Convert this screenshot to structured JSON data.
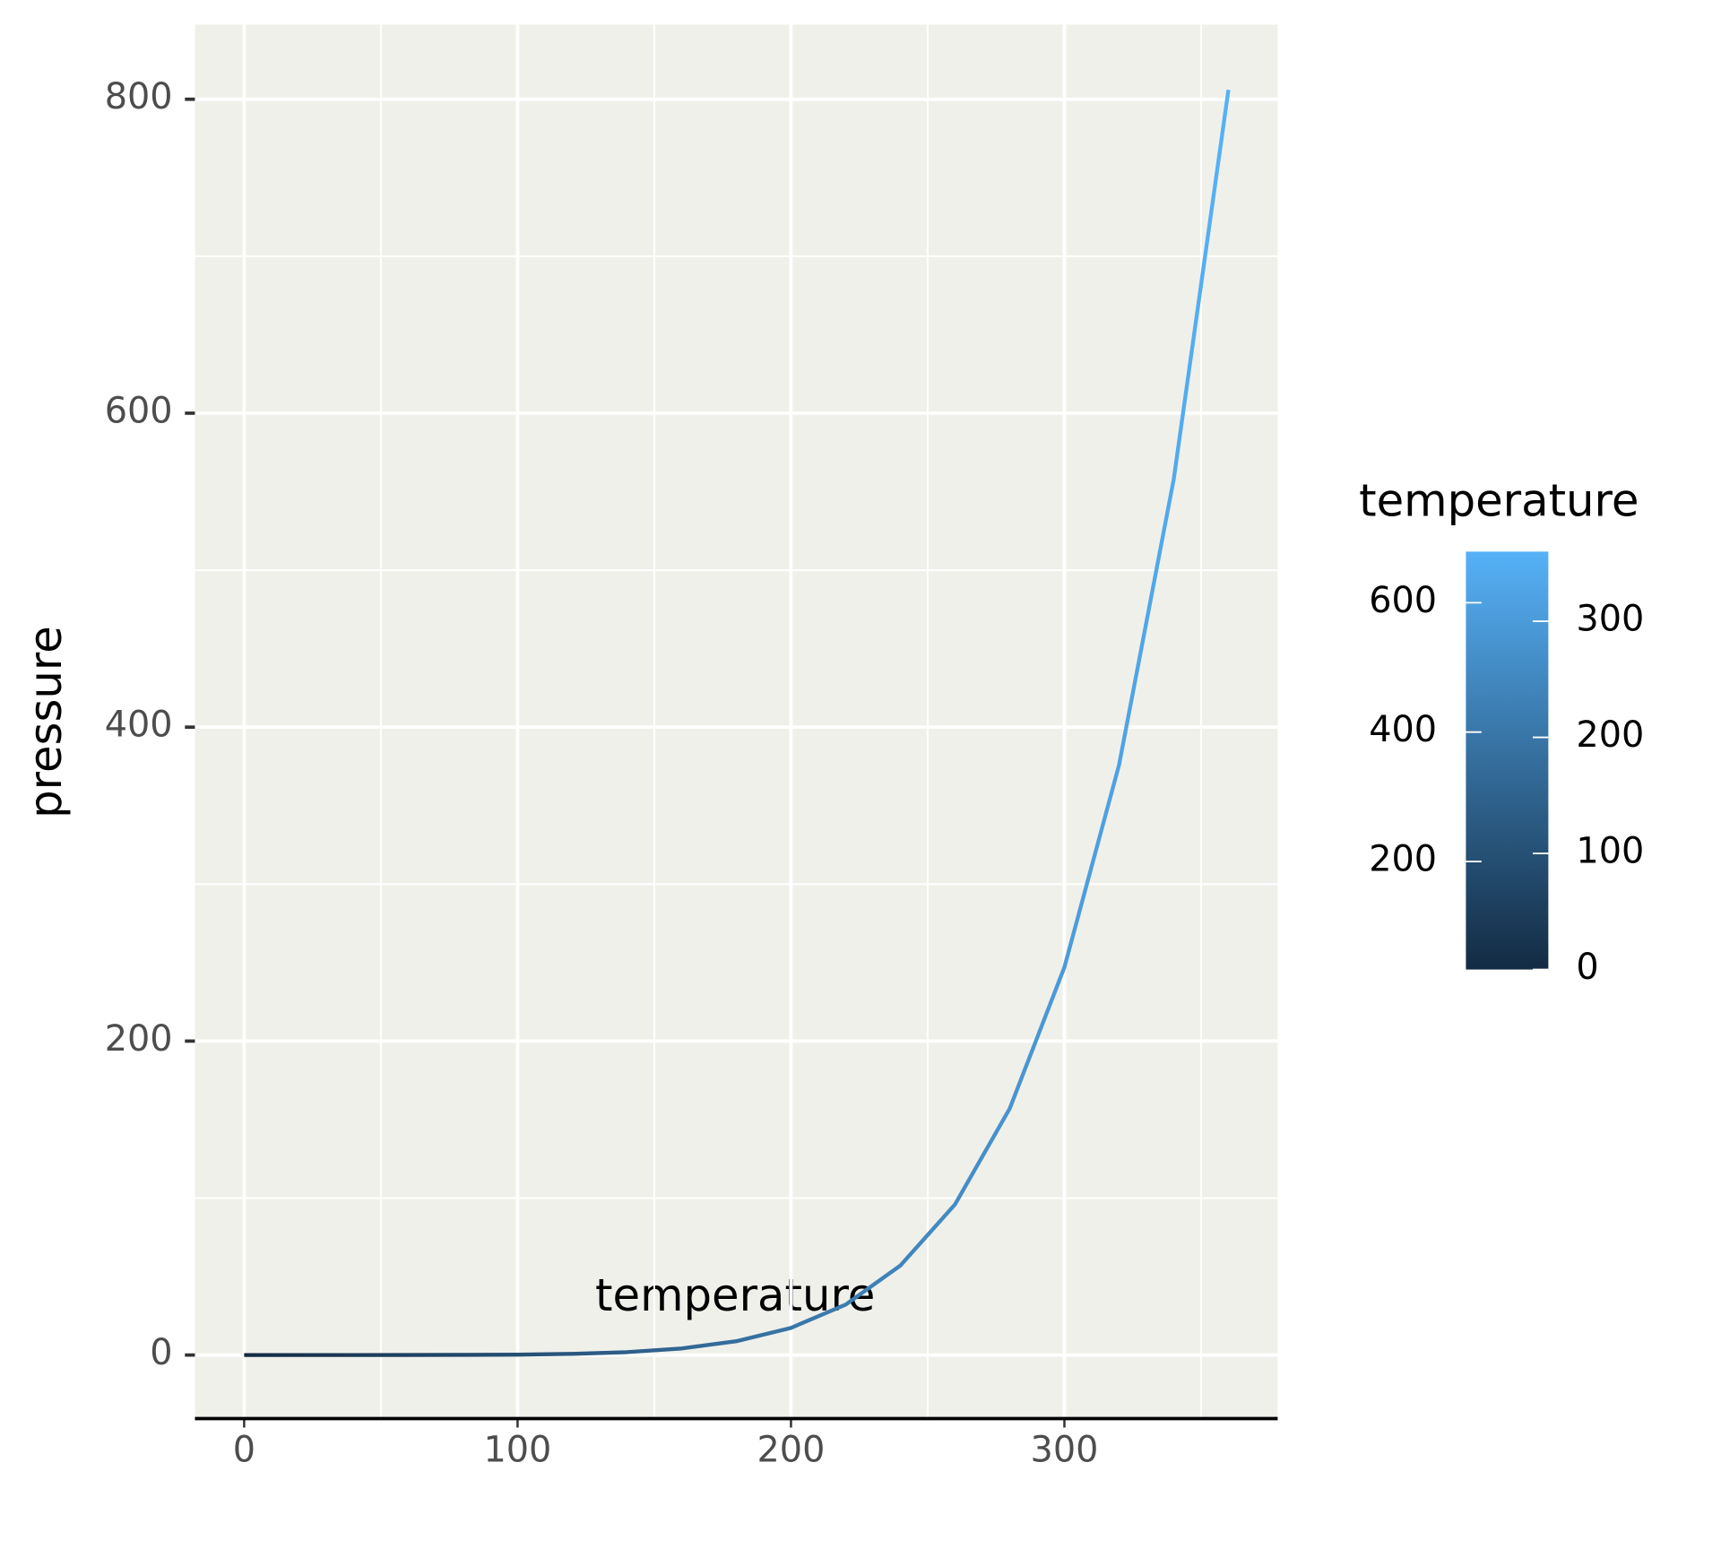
{
  "chart_data": {
    "type": "line",
    "x_label": "temperature",
    "y_label": "pressure",
    "x": [
      0,
      20,
      40,
      60,
      80,
      100,
      120,
      140,
      160,
      180,
      200,
      220,
      240,
      260,
      280,
      300,
      320,
      340,
      360
    ],
    "series": [
      {
        "name": "pressure",
        "values": [
          0.0002,
          0.0012,
          0.006,
          0.03,
          0.09,
          0.27,
          0.75,
          1.85,
          4.2,
          8.8,
          17.3,
          32.1,
          57,
          96,
          157,
          247,
          376,
          558,
          806
        ]
      }
    ],
    "xlim": [
      -18,
      378
    ],
    "xticks": [
      0,
      100,
      200,
      300
    ],
    "xminor": [
      50,
      150,
      250,
      350
    ],
    "ylim": [
      -40.5,
      847.6
    ],
    "yticks": [
      0,
      200,
      400,
      600,
      800
    ],
    "yminor": [
      100,
      300,
      500,
      700
    ],
    "grid": true,
    "colorbar": {
      "title": "temperature",
      "low": "#132B43",
      "high": "#56B1F7",
      "lim": [
        0,
        360
      ],
      "ticks": [
        0,
        100,
        200,
        300
      ],
      "left_lim": [
        33,
        679
      ],
      "left_ticks": [
        200,
        400,
        600
      ]
    }
  }
}
